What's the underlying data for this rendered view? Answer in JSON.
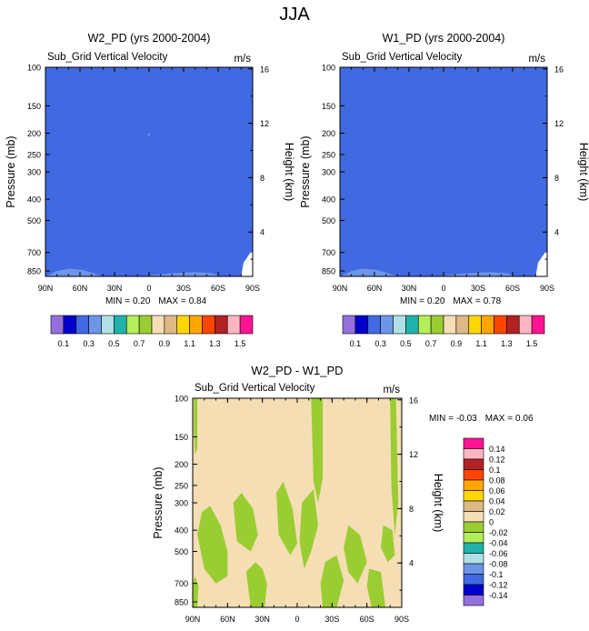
{
  "figure_title": "JJA",
  "colors": {
    "background": "#4169e1",
    "plot_text": "#000000"
  },
  "chart_data": [
    {
      "type": "contour",
      "id": "w2",
      "title": "W2_PD (yrs 2000-2004)",
      "left_subtitle": "Sub_Grid Vertical Velocity",
      "right_subtitle": "m/s",
      "ylabel": "Pressure (mb)",
      "y2label": "Height (km)",
      "x_ticks": [
        "90N",
        "60N",
        "30N",
        "0",
        "30S",
        "60S",
        "90S"
      ],
      "y_ticks": [
        "100",
        "150",
        "200",
        "250",
        "300",
        "400",
        "500",
        "700",
        "850"
      ],
      "y2_ticks": [
        "16",
        "12",
        "8",
        "4"
      ],
      "stats": {
        "min_label": "MIN =",
        "min": "0.20",
        "max_label": "MAX =",
        "max": "0.84"
      },
      "fill": "#4169e1",
      "features": [
        {
          "name": "low-level-light-band",
          "color": "#6d95e8",
          "polygon": [
            [
              90,
              900
            ],
            [
              86,
              880
            ],
            [
              80,
              850
            ],
            [
              70,
              830
            ],
            [
              58,
              840
            ],
            [
              48,
              870
            ],
            [
              40,
              900
            ]
          ]
        },
        {
          "name": "low-level-light-band-2",
          "color": "#6d95e8",
          "polygon": [
            [
              -5,
              900
            ],
            [
              0,
              890
            ],
            [
              -20,
              870
            ],
            [
              -40,
              860
            ],
            [
              -55,
              870
            ],
            [
              -62,
              900
            ]
          ]
        },
        {
          "name": "sh-edge-white",
          "color": "#ffffff",
          "polygon": [
            [
              -80,
              900
            ],
            [
              -82,
              780
            ],
            [
              -88,
              700
            ],
            [
              -90,
              700
            ],
            [
              -90,
              900
            ]
          ]
        },
        {
          "name": "tiny-spot",
          "color": "#9ab8f0",
          "polygon": [
            [
              -0.5,
              200
            ],
            [
              0.5,
              200
            ],
            [
              0.5,
              205
            ],
            [
              -0.5,
              205
            ]
          ]
        }
      ]
    },
    {
      "type": "contour",
      "id": "w1",
      "title": "W1_PD (yrs 2000-2004)",
      "left_subtitle": "Sub_Grid Vertical Velocity",
      "right_subtitle": "m/s",
      "ylabel": "Pressure (mb)",
      "y2label": "Height (km)",
      "x_ticks": [
        "90N",
        "60N",
        "30N",
        "0",
        "30S",
        "60S",
        "90S"
      ],
      "y_ticks": [
        "100",
        "150",
        "200",
        "250",
        "300",
        "400",
        "500",
        "700",
        "850"
      ],
      "y2_ticks": [
        "16",
        "12",
        "8",
        "4"
      ],
      "stats": {
        "min_label": "MIN =",
        "min": "0.20",
        "max_label": "MAX =",
        "max": "0.78"
      },
      "fill": "#4169e1",
      "features": [
        {
          "name": "low-level-light-band",
          "color": "#6d95e8",
          "polygon": [
            [
              90,
              900
            ],
            [
              86,
              880
            ],
            [
              80,
              850
            ],
            [
              70,
              830
            ],
            [
              58,
              840
            ],
            [
              48,
              870
            ],
            [
              40,
              900
            ]
          ]
        },
        {
          "name": "low-level-light-band-2",
          "color": "#6d95e8",
          "polygon": [
            [
              -5,
              900
            ],
            [
              0,
              890
            ],
            [
              -20,
              870
            ],
            [
              -40,
              860
            ],
            [
              -55,
              870
            ],
            [
              -62,
              900
            ]
          ]
        },
        {
          "name": "sh-edge-white",
          "color": "#ffffff",
          "polygon": [
            [
              -80,
              900
            ],
            [
              -82,
              780
            ],
            [
              -88,
              700
            ],
            [
              -90,
              700
            ],
            [
              -90,
              900
            ]
          ]
        }
      ]
    },
    {
      "type": "contour",
      "id": "diff",
      "title": "W2_PD - W1_PD",
      "left_subtitle": "Sub_Grid Vertical Velocity",
      "right_subtitle": "m/s",
      "ylabel": "Pressure (mb)",
      "y2label": "Height (km)",
      "x_ticks": [
        "90N",
        "60N",
        "30N",
        "0",
        "30S",
        "60S",
        "90S"
      ],
      "y_ticks": [
        "100",
        "150",
        "200",
        "250",
        "300",
        "400",
        "500",
        "700",
        "850"
      ],
      "y2_ticks": [
        "16",
        "12",
        "8",
        "4"
      ],
      "stats": {
        "min_label": "MIN =",
        "min": "-0.03",
        "max_label": "MAX =",
        "max": "0.06"
      },
      "fill": "#f5deb3",
      "features": [
        {
          "name": "green-n-top",
          "color": "#9acd32",
          "polygon": [
            [
              89,
              100
            ],
            [
              86,
              100
            ],
            [
              86,
              170
            ],
            [
              88,
              180
            ],
            [
              89,
              140
            ]
          ]
        },
        {
          "name": "green-20s-col",
          "color": "#9acd32",
          "polygon": [
            [
              -12,
              100
            ],
            [
              -22,
              100
            ],
            [
              -22,
              230
            ],
            [
              -18,
              300
            ],
            [
              -14,
              240
            ]
          ]
        },
        {
          "name": "green-80s-col",
          "color": "#9acd32",
          "polygon": [
            [
              -80,
              100
            ],
            [
              -85,
              100
            ],
            [
              -87,
              300
            ],
            [
              -84,
              420
            ],
            [
              -81,
              250
            ]
          ]
        },
        {
          "name": "green-55n-blob",
          "color": "#9acd32",
          "polygon": [
            [
              75,
              310
            ],
            [
              82,
              330
            ],
            [
              86,
              420
            ],
            [
              80,
              600
            ],
            [
              70,
              700
            ],
            [
              60,
              650
            ],
            [
              60,
              500
            ],
            [
              66,
              380
            ]
          ]
        },
        {
          "name": "green-70n-blob",
          "color": "#9acd32",
          "polygon": [
            [
              90,
              700
            ],
            [
              88,
              650
            ],
            [
              85,
              720
            ],
            [
              86,
              900
            ],
            [
              90,
              900
            ]
          ]
        },
        {
          "name": "green-40n-blob",
          "color": "#9acd32",
          "polygon": [
            [
              48,
              270
            ],
            [
              55,
              300
            ],
            [
              52,
              450
            ],
            [
              40,
              500
            ],
            [
              34,
              420
            ],
            [
              38,
              320
            ]
          ]
        },
        {
          "name": "green-30n-blob",
          "color": "#9acd32",
          "polygon": [
            [
              36,
              560
            ],
            [
              44,
              620
            ],
            [
              40,
              900
            ],
            [
              28,
              900
            ],
            [
              26,
              700
            ],
            [
              30,
              600
            ]
          ]
        },
        {
          "name": "green-5n-blob",
          "color": "#9acd32",
          "polygon": [
            [
              12,
              240
            ],
            [
              18,
              270
            ],
            [
              16,
              420
            ],
            [
              6,
              520
            ],
            [
              0,
              460
            ],
            [
              4,
              320
            ]
          ]
        },
        {
          "name": "green-10s-blob",
          "color": "#9acd32",
          "polygon": [
            [
              -4,
              300
            ],
            [
              -14,
              260
            ],
            [
              -18,
              380
            ],
            [
              -12,
              500
            ],
            [
              -6,
              600
            ],
            [
              -2,
              450
            ]
          ]
        },
        {
          "name": "green-30s-blob",
          "color": "#9acd32",
          "polygon": [
            [
              -24,
              560
            ],
            [
              -34,
              520
            ],
            [
              -40,
              680
            ],
            [
              -34,
              900
            ],
            [
              -22,
              900
            ],
            [
              -20,
              700
            ]
          ]
        },
        {
          "name": "green-50s-blob",
          "color": "#9acd32",
          "polygon": [
            [
              -44,
              380
            ],
            [
              -54,
              420
            ],
            [
              -60,
              560
            ],
            [
              -52,
              700
            ],
            [
              -44,
              620
            ],
            [
              -40,
              480
            ]
          ]
        },
        {
          "name": "green-65s-blob",
          "color": "#9acd32",
          "polygon": [
            [
              -62,
              600
            ],
            [
              -72,
              620
            ],
            [
              -76,
              900
            ],
            [
              -64,
              900
            ],
            [
              -60,
              720
            ]
          ]
        },
        {
          "name": "green-75s-blob",
          "color": "#9acd32",
          "polygon": [
            [
              -74,
              380
            ],
            [
              -82,
              400
            ],
            [
              -84,
              520
            ],
            [
              -78,
              560
            ],
            [
              -72,
              480
            ]
          ]
        }
      ]
    }
  ],
  "colorbar_top": {
    "colors": [
      "#9370db",
      "#0000cd",
      "#4169e1",
      "#6d95e8",
      "#b0e0e6",
      "#20b2aa",
      "#b4ee5a",
      "#9acd32",
      "#f5deb3",
      "#deb887",
      "#ffd700",
      "#ffa500",
      "#ff4500",
      "#b22222",
      "#ffb6c1",
      "#ff1493"
    ],
    "labels": [
      "0.1",
      "0.3",
      "0.5",
      "0.7",
      "0.9",
      "1.1",
      "1.3",
      "1.5"
    ]
  },
  "colorbar_diff": {
    "colors": [
      "#ff1493",
      "#ffb6c1",
      "#b22222",
      "#ff4500",
      "#ffa500",
      "#ffd700",
      "#deb887",
      "#f5deb3",
      "#9acd32",
      "#b4ee5a",
      "#20b2aa",
      "#b0e0e6",
      "#6d95e8",
      "#4169e1",
      "#0000cd",
      "#9370db"
    ],
    "labels": [
      "0.14",
      "0.12",
      "0.1",
      "0.08",
      "0.06",
      "0.04",
      "0.02",
      "0",
      "-0.02",
      "-0.04",
      "-0.06",
      "-0.08",
      "-0.1",
      "-0.12",
      "-0.14"
    ]
  }
}
